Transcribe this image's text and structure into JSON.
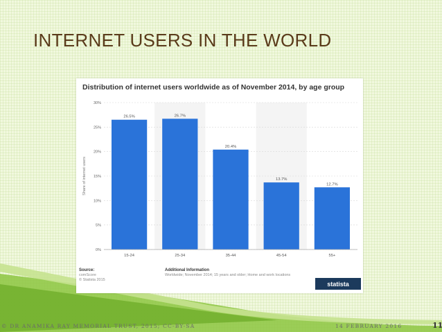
{
  "slide": {
    "title": "INTERNET USERS IN THE WORLD",
    "footer_left": "© DR ANAMIKA RAY MEMORIAL TRUST, 2015; CC-BY-SA",
    "footer_date": "14 FEBRUARY 2016",
    "page_number": "11"
  },
  "source": {
    "heading": "Source:",
    "line1": "comScore",
    "line2": "© Statista 2015"
  },
  "info": {
    "heading": "Additional Information",
    "text": "Worldwide; November 2014; 15 years and older; Home and work locations"
  },
  "brand": "statista",
  "colors": {
    "bar": "#2a73d9",
    "background": "#f1f8de",
    "title": "#5a3a1a",
    "swoosh": "#8cc63f"
  },
  "chart_data": {
    "type": "bar",
    "title": "Distribution of internet users worldwide as of November 2014, by age group",
    "xlabel": "",
    "ylabel": "Share of internet users",
    "categories": [
      "15-24",
      "25-34",
      "35-44",
      "45-54",
      "55+"
    ],
    "values": [
      26.5,
      26.7,
      20.4,
      13.7,
      12.7
    ],
    "value_labels": [
      "26.5%",
      "26.7%",
      "20.4%",
      "13.7%",
      "12.7%"
    ],
    "ylim": [
      0,
      30
    ],
    "yticks": [
      "0%",
      "5%",
      "10%",
      "15%",
      "20%",
      "25%",
      "30%"
    ],
    "grid": true
  }
}
